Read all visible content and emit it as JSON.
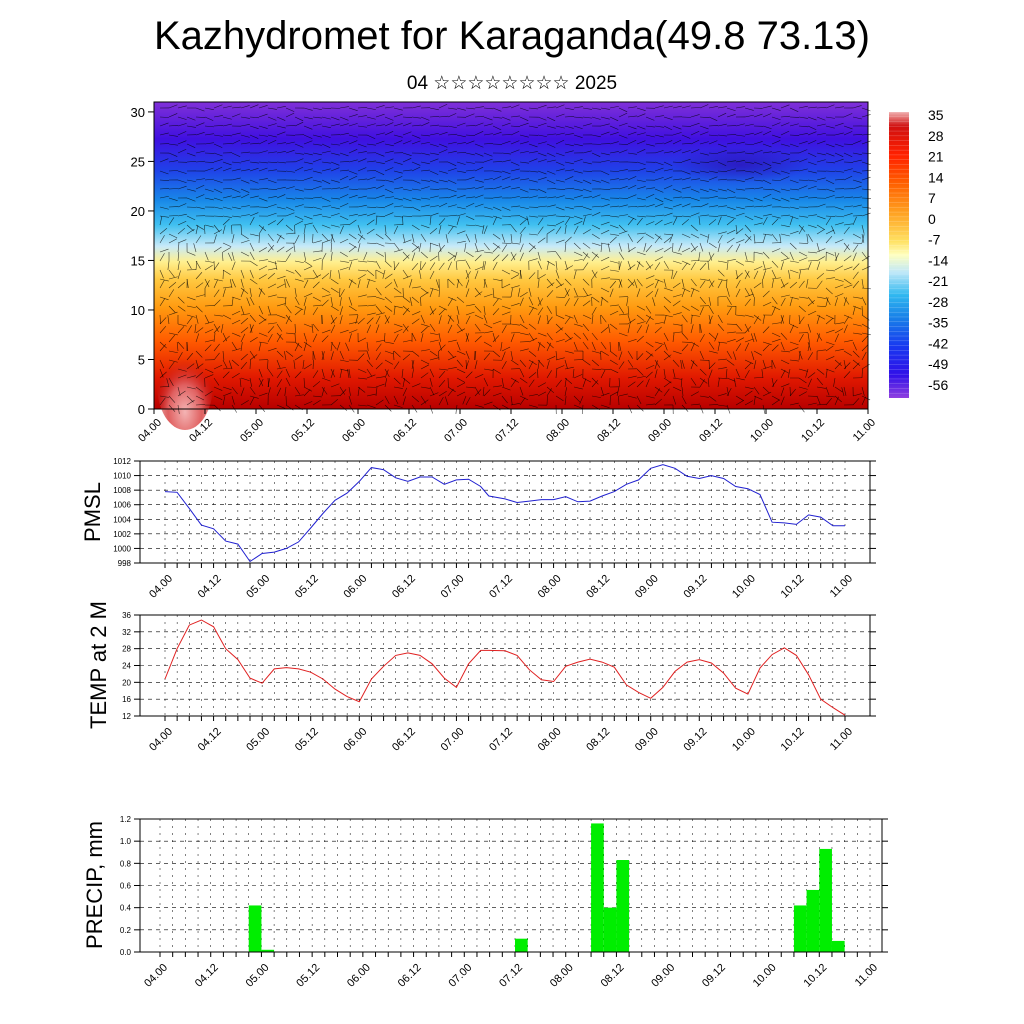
{
  "title": "Kazhydromet for Karaganda(49.8 73.13)",
  "subtitle": "04 ☆☆☆☆☆☆☆☆ 2025",
  "time_labels": [
    "04.00",
    "04.12",
    "05.00",
    "05.12",
    "06.00",
    "06.12",
    "07.00",
    "07.12",
    "08.00",
    "08.12",
    "09.00",
    "09.12",
    "10.00",
    "10.12",
    "11.00"
  ],
  "colors": {
    "pmsl_line": "#2020d0",
    "temp_line": "#e02020",
    "precip_bar": "#00ee00"
  },
  "chart_data": [
    {
      "type": "heatmap",
      "name": "cross-section",
      "ylim": [
        0,
        31
      ],
      "yticks": [
        0,
        5,
        10,
        15,
        20,
        25,
        30
      ],
      "colorbar_labels": [
        "35",
        "28",
        "21",
        "14",
        "7",
        "0",
        "-7",
        "-14",
        "-21",
        "-28",
        "-35",
        "-42",
        "-49",
        "-56"
      ],
      "colorbar_range": [
        -63,
        42
      ],
      "x": [
        "04.00",
        "04.12",
        "05.00",
        "05.12",
        "06.00",
        "06.12",
        "07.00",
        "07.12",
        "08.00",
        "08.12",
        "09.00",
        "09.12",
        "10.00",
        "10.12",
        "11.00"
      ]
    },
    {
      "type": "line",
      "ylabel": "PMSL",
      "ylim": [
        998,
        1012
      ],
      "yticks": [
        998,
        1000,
        1002,
        1004,
        1006,
        1008,
        1010,
        1012
      ],
      "x_hours": [
        0,
        3,
        6,
        9,
        12,
        15,
        18,
        21,
        24,
        27,
        30,
        33,
        36,
        39,
        42,
        45,
        48,
        51,
        54,
        57,
        60,
        63,
        66,
        69,
        72,
        75,
        78,
        80,
        84,
        87,
        90,
        93,
        96,
        99,
        102,
        105,
        108,
        111,
        114,
        117,
        120,
        123,
        126,
        129,
        132,
        135,
        138,
        141,
        144,
        147,
        150,
        153,
        156,
        159,
        162,
        165,
        168
      ],
      "values": [
        1007.8,
        1007.7,
        1005.5,
        1003.2,
        1002.7,
        1001.0,
        1000.6,
        998.2,
        999.3,
        999.5,
        1000.0,
        1000.9,
        1002.8,
        1004.8,
        1006.6,
        1007.6,
        1009.2,
        1011.1,
        1010.8,
        1009.7,
        1009.2,
        1009.8,
        1009.8,
        1008.8,
        1009.4,
        1009.5,
        1008.5,
        1007.2,
        1006.8,
        1006.3,
        1006.5,
        1006.7,
        1006.7,
        1007.1,
        1006.4,
        1006.5,
        1007.2,
        1007.8,
        1008.8,
        1009.4,
        1011.0,
        1011.5,
        1011.0,
        1009.9,
        1009.6,
        1010.0,
        1009.6,
        1008.5,
        1008.2,
        1007.4,
        1003.6,
        1003.5,
        1003.3,
        1004.6,
        1004.3,
        1003.1,
        1003.1
      ]
    },
    {
      "type": "line",
      "ylabel": "TEMP at 2 M",
      "ylim": [
        12,
        36
      ],
      "yticks": [
        12,
        16,
        20,
        24,
        28,
        32,
        36
      ],
      "x_hours": [
        0,
        3,
        6,
        9,
        12,
        15,
        18,
        21,
        24,
        27,
        30,
        33,
        36,
        39,
        42,
        45,
        48,
        51,
        54,
        57,
        60,
        63,
        66,
        69,
        72,
        75,
        78,
        80,
        84,
        87,
        90,
        93,
        96,
        99,
        102,
        105,
        108,
        111,
        114,
        117,
        120,
        123,
        126,
        129,
        132,
        135,
        138,
        141,
        144,
        147,
        150,
        153,
        156,
        159,
        162,
        165,
        168
      ],
      "values": [
        20.8,
        28.0,
        33.6,
        34.8,
        33.2,
        28.0,
        25.4,
        21.0,
        19.8,
        23.2,
        23.5,
        23.2,
        22.4,
        20.8,
        18.4,
        16.6,
        15.4,
        20.8,
        23.8,
        26.4,
        27.0,
        26.4,
        24.4,
        21.0,
        18.8,
        24.4,
        27.6,
        27.6,
        27.5,
        26.4,
        23.0,
        20.6,
        20.2,
        23.8,
        24.8,
        25.5,
        24.8,
        23.6,
        19.4,
        17.6,
        16.2,
        18.8,
        22.6,
        24.8,
        25.4,
        24.6,
        22.2,
        18.6,
        17.2,
        23.4,
        26.6,
        28.2,
        26.4,
        21.8,
        16.0,
        14.0,
        12.2
      ]
    },
    {
      "type": "bar",
      "ylabel": "PRECIP, mm",
      "ylim": [
        0,
        1.2
      ],
      "yticks": [
        0.0,
        0.2,
        0.4,
        0.6,
        0.8,
        1.0,
        1.2
      ],
      "x_hours": [
        21,
        24,
        84,
        102,
        105,
        108,
        111,
        150,
        153,
        156,
        159
      ],
      "values": [
        0.42,
        0.02,
        0.12,
        1.16,
        0.4,
        0.83,
        0.0,
        0.42,
        0.56,
        0.93,
        0.1
      ]
    }
  ]
}
